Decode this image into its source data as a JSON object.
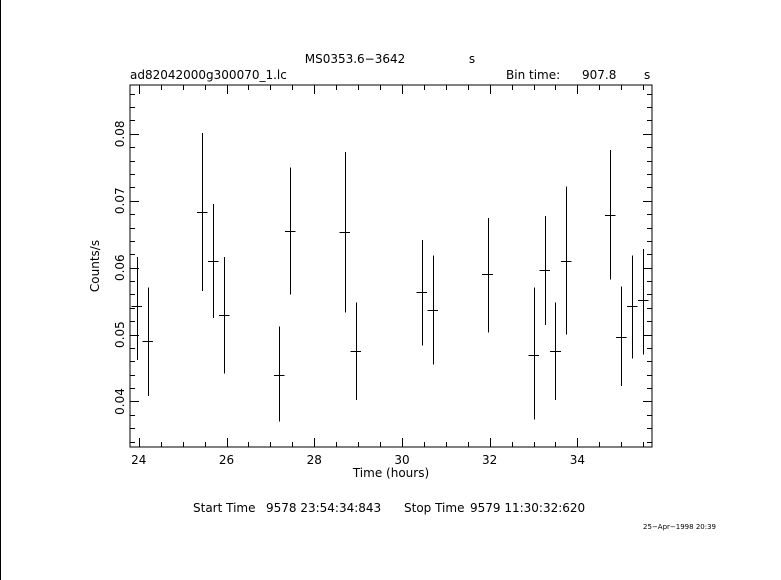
{
  "header": {
    "object": "MS0353.6−3642",
    "object_unit": "s",
    "file": "ad82042000g300070_1.lc",
    "bin_label": "Bin time:",
    "bin_value": "907.8",
    "bin_unit": "s"
  },
  "footer": {
    "start_label": "Start Time",
    "start_value": "9578 23:54:34:843",
    "stop_label": "Stop Time",
    "stop_value": "9579 11:30:32:620",
    "date_stamp": "25−Apr−1998 20:39"
  },
  "chart_data": {
    "type": "scatter",
    "title": "MS0353.6−3642",
    "xlabel": "Time (hours)",
    "ylabel": "Counts/s",
    "xlim": [
      23.8,
      35.7
    ],
    "ylim": [
      0.0332,
      0.0873
    ],
    "xticks": [
      24,
      26,
      28,
      30,
      32,
      34
    ],
    "xtick_labels": [
      "24",
      "26",
      "28",
      "30",
      "32",
      "34"
    ],
    "yticks": [
      0.04,
      0.05,
      0.06,
      0.07,
      0.08
    ],
    "ytick_labels": [
      "0.04",
      "0.05",
      "0.06",
      "0.07",
      "0.08"
    ],
    "grid": false,
    "points": [
      {
        "x": 23.95,
        "y": 0.0542,
        "ylo": 0.0462,
        "yhi": 0.0616
      },
      {
        "x": 24.2,
        "y": 0.049,
        "ylo": 0.0408,
        "yhi": 0.057
      },
      {
        "x": 25.45,
        "y": 0.0683,
        "ylo": 0.0565,
        "yhi": 0.0801
      },
      {
        "x": 25.7,
        "y": 0.061,
        "ylo": 0.0525,
        "yhi": 0.0695
      },
      {
        "x": 25.95,
        "y": 0.053,
        "ylo": 0.0442,
        "yhi": 0.0616
      },
      {
        "x": 27.2,
        "y": 0.044,
        "ylo": 0.037,
        "yhi": 0.0512
      },
      {
        "x": 27.45,
        "y": 0.0655,
        "ylo": 0.056,
        "yhi": 0.075
      },
      {
        "x": 28.7,
        "y": 0.0653,
        "ylo": 0.0533,
        "yhi": 0.0773
      },
      {
        "x": 28.95,
        "y": 0.0475,
        "ylo": 0.0402,
        "yhi": 0.0548
      },
      {
        "x": 30.45,
        "y": 0.0563,
        "ylo": 0.0484,
        "yhi": 0.0641
      },
      {
        "x": 30.7,
        "y": 0.0537,
        "ylo": 0.0455,
        "yhi": 0.0618
      },
      {
        "x": 31.95,
        "y": 0.059,
        "ylo": 0.0503,
        "yhi": 0.0674
      },
      {
        "x": 33.0,
        "y": 0.047,
        "ylo": 0.0373,
        "yhi": 0.057
      },
      {
        "x": 33.25,
        "y": 0.0596,
        "ylo": 0.0514,
        "yhi": 0.0677
      },
      {
        "x": 33.5,
        "y": 0.0475,
        "ylo": 0.0402,
        "yhi": 0.0548
      },
      {
        "x": 33.75,
        "y": 0.061,
        "ylo": 0.05,
        "yhi": 0.0721
      },
      {
        "x": 34.75,
        "y": 0.0678,
        "ylo": 0.0582,
        "yhi": 0.0776
      },
      {
        "x": 35.0,
        "y": 0.0497,
        "ylo": 0.0423,
        "yhi": 0.0572
      },
      {
        "x": 35.25,
        "y": 0.0542,
        "ylo": 0.0464,
        "yhi": 0.0618
      },
      {
        "x": 35.5,
        "y": 0.0551,
        "ylo": 0.047,
        "yhi": 0.0628
      }
    ]
  }
}
